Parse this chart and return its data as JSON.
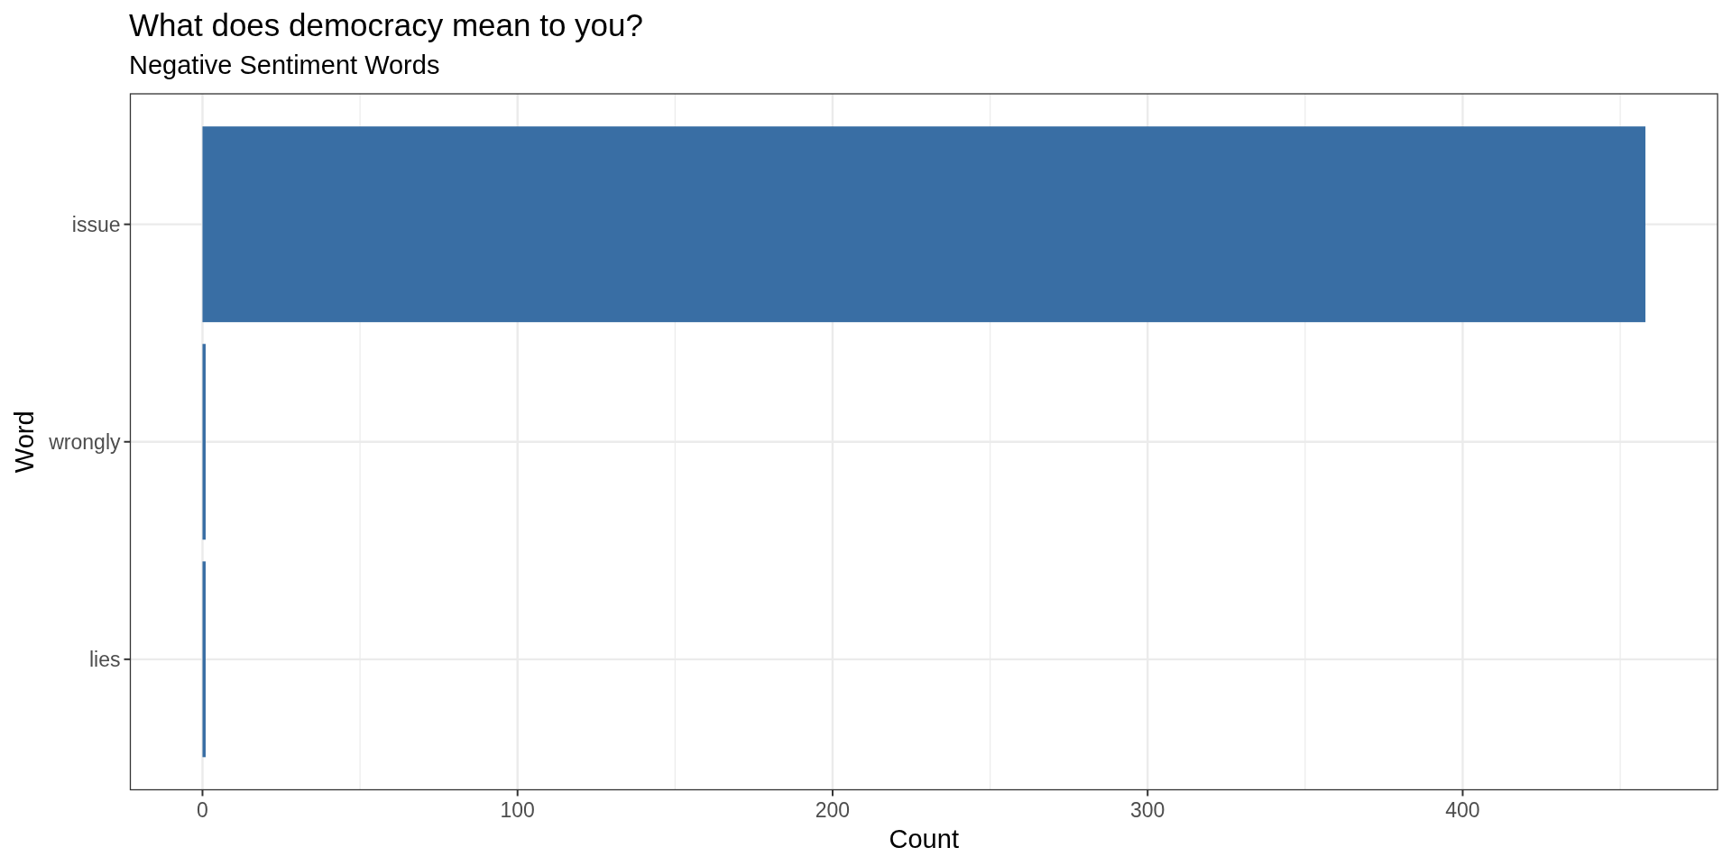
{
  "chart_data": {
    "type": "bar",
    "orientation": "horizontal",
    "title": "What does democracy mean to you?",
    "subtitle": "Negative Sentiment Words",
    "xlabel": "Count",
    "ylabel": "Word",
    "categories": [
      "issue",
      "wrongly",
      "lies"
    ],
    "values": [
      458,
      1,
      1
    ],
    "color": "#396ea4",
    "xlim": [
      -22.9,
      480.9
    ],
    "xticks": [
      0,
      100,
      200,
      300,
      400
    ],
    "grid": true
  }
}
